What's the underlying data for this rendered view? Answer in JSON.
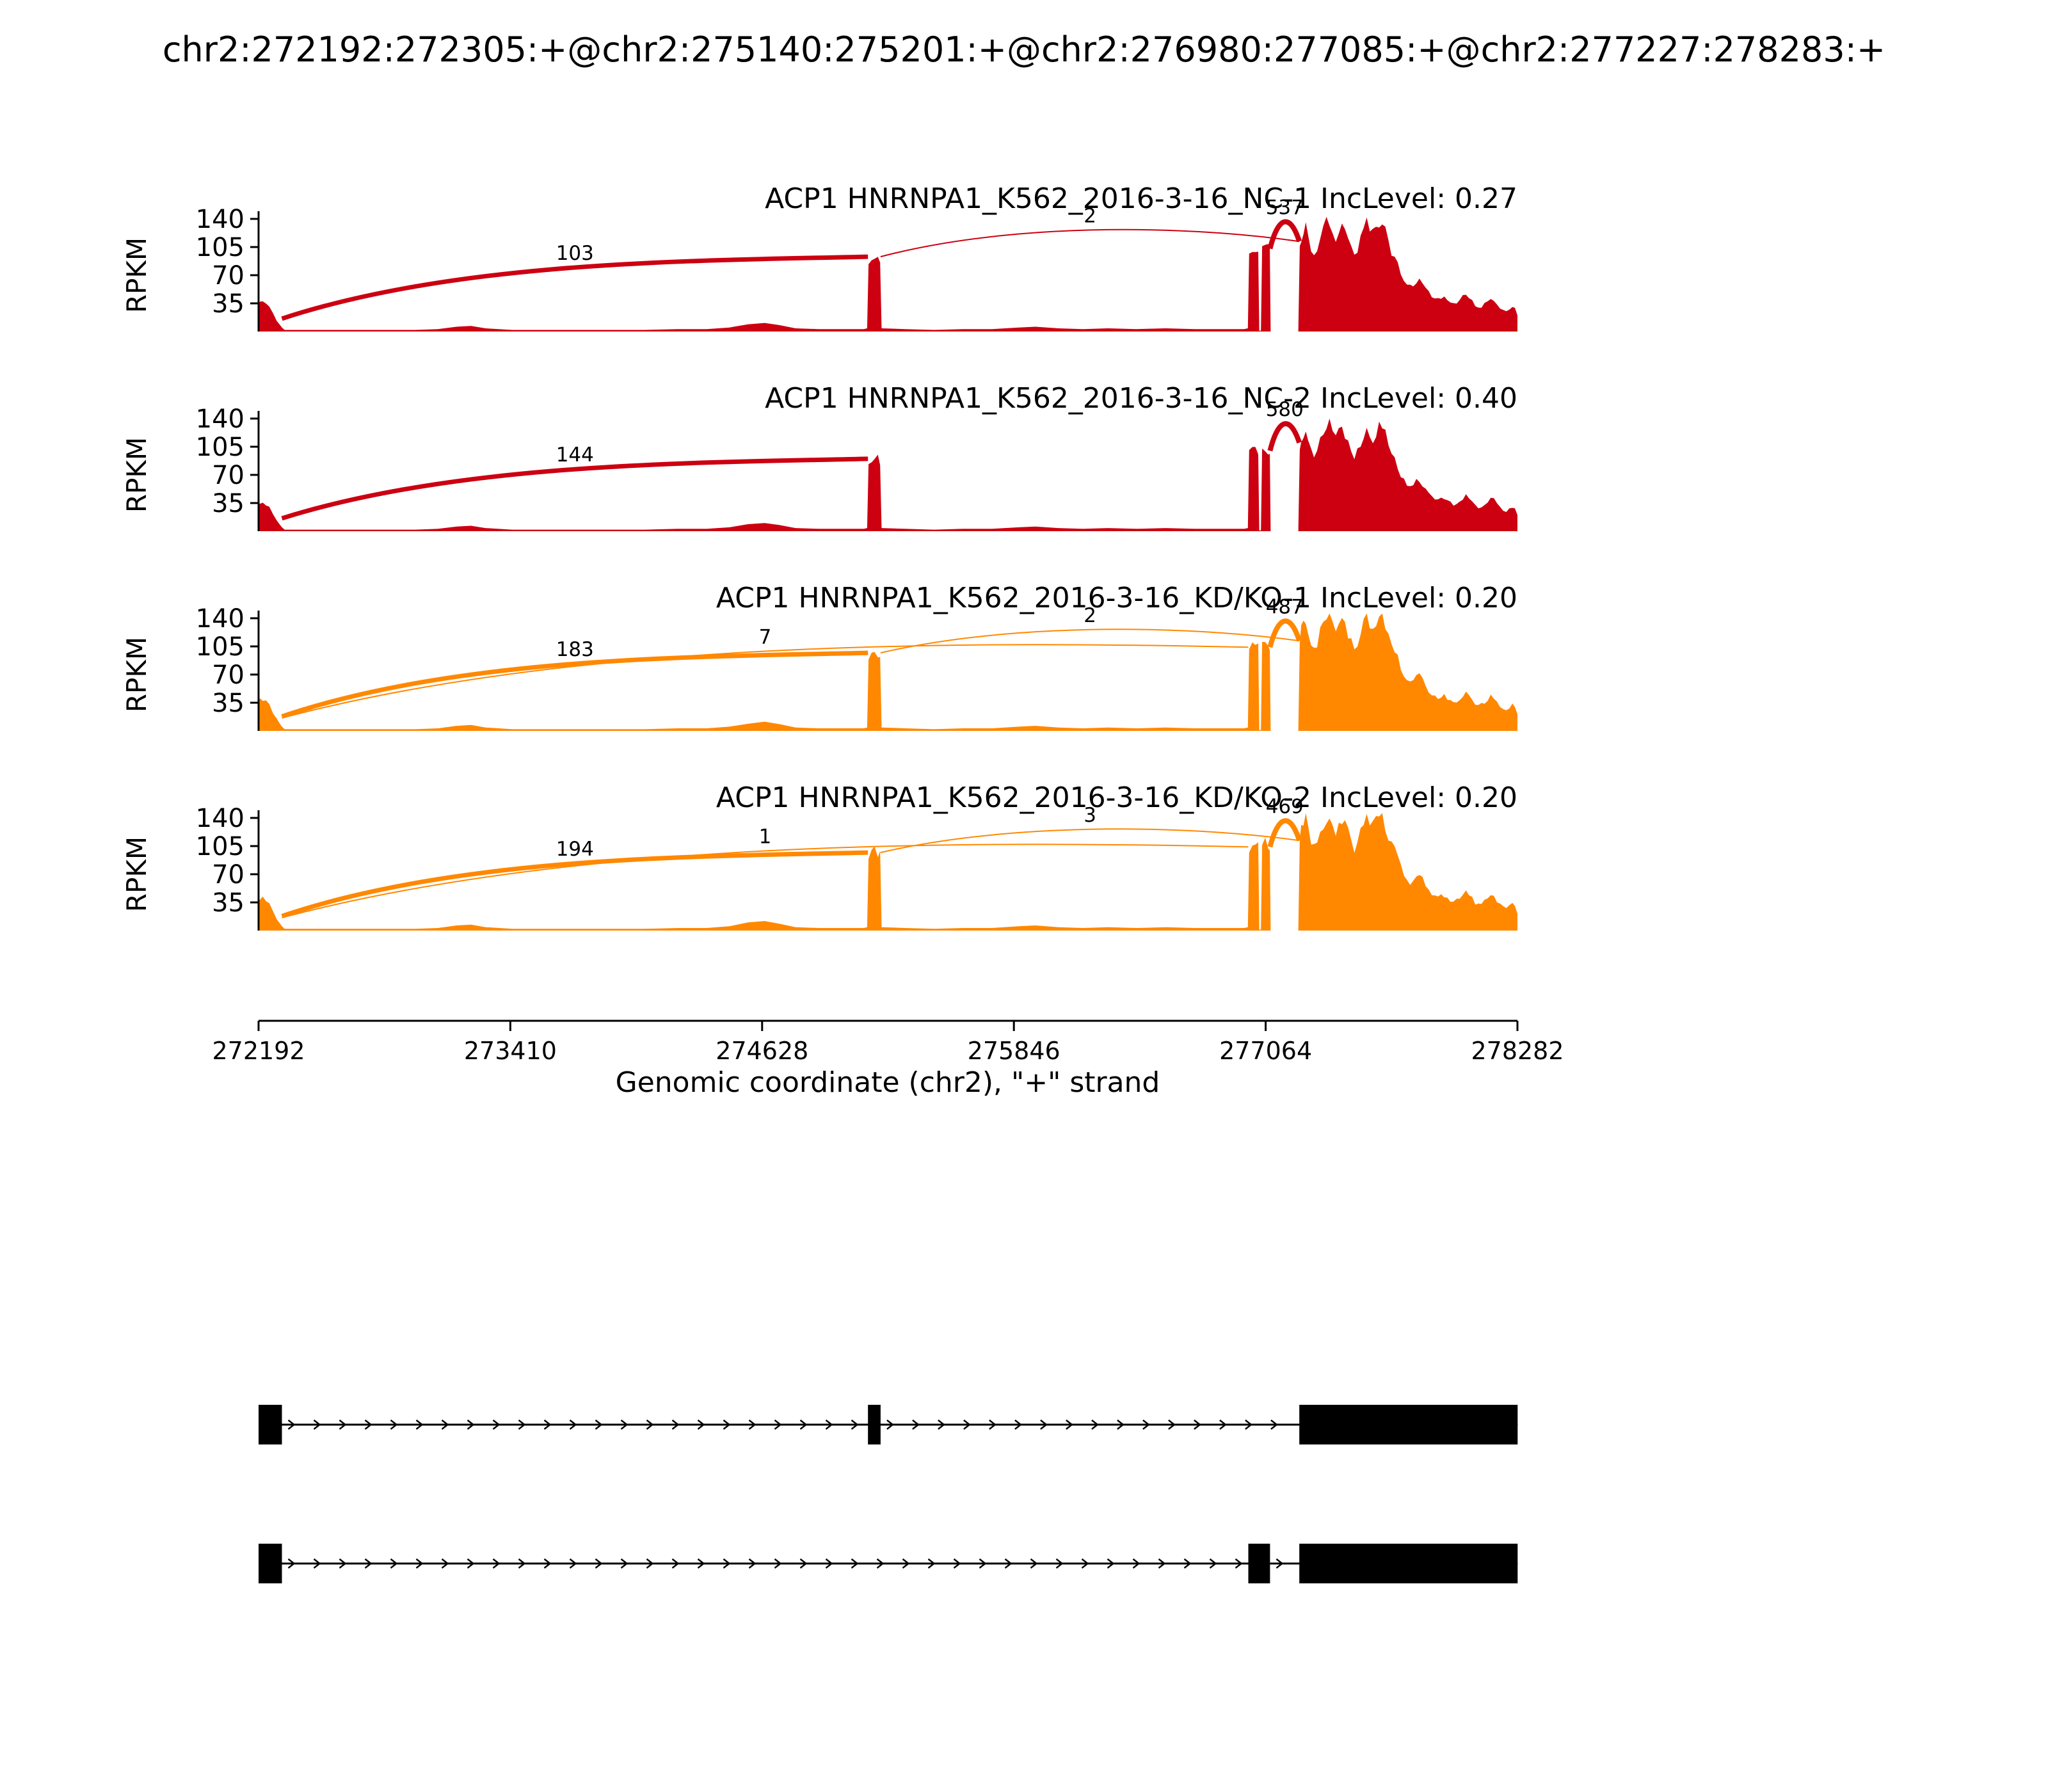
{
  "page": {
    "title": "chr2:272192:272305:+@chr2:275140:275201:+@chr2:276980:277085:+@chr2:277227:278283:+"
  },
  "chart_data": {
    "type": "area",
    "plot_kind": "sashimi-coverage-with-junctions",
    "x_axis": {
      "label": "Genomic coordinate (chr2), \"+\" strand",
      "range": [
        272192,
        278282
      ],
      "ticks": [
        272192,
        273410,
        274628,
        275846,
        277064,
        278282
      ]
    },
    "y_axis": {
      "label": "RPKM",
      "ticks": [
        35,
        70,
        105,
        140
      ],
      "max": 140
    },
    "tracks": [
      {
        "title": "ACP1 HNRNPA1_K562_2016-3-16_NC-1 IncLevel: 0.27",
        "inc_level": 0.27,
        "color": "#CC0011",
        "coverage_scale": 1.0,
        "noise_seed": 11,
        "junctions": [
          {
            "from": 272305,
            "to": 275140,
            "count": 103,
            "h1": 16,
            "h2": 93,
            "hpeak": 88,
            "lw": 7
          },
          {
            "from": 275201,
            "to": 277227,
            "count": 2,
            "h1": 93,
            "h2": 112,
            "hpeak": 134,
            "lw": 2
          },
          {
            "from": 277085,
            "to": 277227,
            "count": 537,
            "h1": 103,
            "h2": 112,
            "hpeak": 146,
            "lw": 8
          }
        ]
      },
      {
        "title": "ACP1 HNRNPA1_K562_2016-3-16_NC-2 IncLevel: 0.40",
        "inc_level": 0.4,
        "color": "#CC0011",
        "coverage_scale": 0.97,
        "noise_seed": 22,
        "junctions": [
          {
            "from": 272305,
            "to": 275140,
            "count": 144,
            "h1": 16,
            "h2": 90,
            "hpeak": 85,
            "lw": 7
          },
          {
            "from": 277085,
            "to": 277227,
            "count": 580,
            "h1": 100,
            "h2": 110,
            "hpeak": 143,
            "lw": 8
          }
        ]
      },
      {
        "title": "ACP1 HNRNPA1_K562_2016-3-16_KD/KO-1 IncLevel: 0.20",
        "inc_level": 0.2,
        "color": "#FF8800",
        "coverage_scale": 1.05,
        "noise_seed": 33,
        "junctions": [
          {
            "from": 272305,
            "to": 275140,
            "count": 183,
            "h1": 18,
            "h2": 97,
            "hpeak": 92,
            "lw": 7
          },
          {
            "from": 272305,
            "to": 276980,
            "count": 7,
            "h1": 16,
            "h2": 104,
            "hpeak": 112,
            "lw": 2
          },
          {
            "from": 275201,
            "to": 277227,
            "count": 2,
            "h1": 97,
            "h2": 112,
            "hpeak": 133,
            "lw": 2
          },
          {
            "from": 277085,
            "to": 277227,
            "count": 487,
            "h1": 104,
            "h2": 112,
            "hpeak": 146,
            "lw": 8
          }
        ]
      },
      {
        "title": "ACP1 HNRNPA1_K562_2016-3-16_KD/KO-2 IncLevel: 0.20",
        "inc_level": 0.2,
        "color": "#FF8800",
        "coverage_scale": 1.06,
        "noise_seed": 44,
        "junctions": [
          {
            "from": 272305,
            "to": 275140,
            "count": 194,
            "h1": 18,
            "h2": 97,
            "hpeak": 92,
            "lw": 7
          },
          {
            "from": 272305,
            "to": 276980,
            "count": 1,
            "h1": 16,
            "h2": 104,
            "hpeak": 112,
            "lw": 2
          },
          {
            "from": 275201,
            "to": 277227,
            "count": 3,
            "h1": 97,
            "h2": 112,
            "hpeak": 133,
            "lw": 2
          },
          {
            "from": 277085,
            "to": 277227,
            "count": 469,
            "h1": 104,
            "h2": 112,
            "hpeak": 146,
            "lw": 8
          }
        ]
      }
    ],
    "coverage_profile": [
      [
        272192,
        34
      ],
      [
        272200,
        37
      ],
      [
        272212,
        38
      ],
      [
        272228,
        35
      ],
      [
        272244,
        30
      ],
      [
        272262,
        22
      ],
      [
        272280,
        14
      ],
      [
        272296,
        8
      ],
      [
        272305,
        5
      ],
      [
        272318,
        2
      ],
      [
        272480,
        2
      ],
      [
        272640,
        2
      ],
      [
        272800,
        2
      ],
      [
        272950,
        2
      ],
      [
        273060,
        3
      ],
      [
        273150,
        6
      ],
      [
        273220,
        7
      ],
      [
        273290,
        4
      ],
      [
        273420,
        2
      ],
      [
        273560,
        2
      ],
      [
        273720,
        2
      ],
      [
        273900,
        2
      ],
      [
        274060,
        2
      ],
      [
        274220,
        3
      ],
      [
        274360,
        3
      ],
      [
        274470,
        5
      ],
      [
        274560,
        9
      ],
      [
        274640,
        11
      ],
      [
        274710,
        8
      ],
      [
        274790,
        4
      ],
      [
        274900,
        3
      ],
      [
        275020,
        3
      ],
      [
        275120,
        3
      ],
      [
        275136,
        4
      ],
      [
        275143,
        89
      ],
      [
        275158,
        93
      ],
      [
        275172,
        95
      ],
      [
        275188,
        92
      ],
      [
        275199,
        88
      ],
      [
        275206,
        4
      ],
      [
        275320,
        3
      ],
      [
        275460,
        2
      ],
      [
        275600,
        3
      ],
      [
        275740,
        3
      ],
      [
        275870,
        5
      ],
      [
        275950,
        6
      ],
      [
        276060,
        4
      ],
      [
        276180,
        3
      ],
      [
        276300,
        4
      ],
      [
        276440,
        3
      ],
      [
        276580,
        4
      ],
      [
        276720,
        3
      ],
      [
        276850,
        3
      ],
      [
        276960,
        3
      ],
      [
        276978,
        4
      ],
      [
        276984,
        98
      ],
      [
        277000,
        104
      ],
      [
        277014,
        102
      ],
      [
        277028,
        98
      ],
      [
        277033,
        1
      ],
      [
        277041,
        1
      ],
      [
        277047,
        100
      ],
      [
        277062,
        106
      ],
      [
        277076,
        103
      ],
      [
        277084,
        97
      ],
      [
        277088,
        0
      ],
      [
        277140,
        0
      ],
      [
        277222,
        0
      ],
      [
        277229,
        105
      ],
      [
        277236,
        118
      ],
      [
        277247,
        128
      ],
      [
        277258,
        136
      ],
      [
        277270,
        121
      ],
      [
        277284,
        103
      ],
      [
        277298,
        96
      ],
      [
        277313,
        104
      ],
      [
        277328,
        115
      ],
      [
        277343,
        125
      ],
      [
        277358,
        134
      ],
      [
        277373,
        140
      ],
      [
        277388,
        131
      ],
      [
        277403,
        119
      ],
      [
        277418,
        126
      ],
      [
        277433,
        133
      ],
      [
        277448,
        127
      ],
      [
        277463,
        115
      ],
      [
        277478,
        103
      ],
      [
        277493,
        96
      ],
      [
        277508,
        100
      ],
      [
        277523,
        113
      ],
      [
        277538,
        125
      ],
      [
        277553,
        134
      ],
      [
        277568,
        128
      ],
      [
        277583,
        121
      ],
      [
        277598,
        129
      ],
      [
        277613,
        138
      ],
      [
        277628,
        133
      ],
      [
        277643,
        123
      ],
      [
        277658,
        109
      ],
      [
        277673,
        99
      ],
      [
        277688,
        93
      ],
      [
        277703,
        85
      ],
      [
        277718,
        73
      ],
      [
        277733,
        64
      ],
      [
        277748,
        58
      ],
      [
        277763,
        55
      ],
      [
        277778,
        58
      ],
      [
        277793,
        63
      ],
      [
        277808,
        66
      ],
      [
        277823,
        61
      ],
      [
        277838,
        53
      ],
      [
        277853,
        48
      ],
      [
        277868,
        44
      ],
      [
        277883,
        42
      ],
      [
        277898,
        40
      ],
      [
        277913,
        42
      ],
      [
        277928,
        41
      ],
      [
        277943,
        38
      ],
      [
        277958,
        36
      ],
      [
        277973,
        34
      ],
      [
        277988,
        35
      ],
      [
        278003,
        38
      ],
      [
        278018,
        43
      ],
      [
        278033,
        46
      ],
      [
        278048,
        42
      ],
      [
        278063,
        37
      ],
      [
        278078,
        32
      ],
      [
        278093,
        30
      ],
      [
        278108,
        31
      ],
      [
        278123,
        34
      ],
      [
        278138,
        38
      ],
      [
        278153,
        42
      ],
      [
        278168,
        40
      ],
      [
        278183,
        35
      ],
      [
        278198,
        30
      ],
      [
        278213,
        27
      ],
      [
        278228,
        25
      ],
      [
        278243,
        28
      ],
      [
        278258,
        31
      ],
      [
        278270,
        28
      ],
      [
        278282,
        21
      ]
    ],
    "isoforms": [
      {
        "exons": [
          [
            272192,
            272305
          ],
          [
            275140,
            275201
          ],
          [
            277227,
            278283
          ]
        ]
      },
      {
        "exons": [
          [
            272192,
            272305
          ],
          [
            276980,
            277085
          ],
          [
            277227,
            278283
          ]
        ]
      }
    ]
  }
}
